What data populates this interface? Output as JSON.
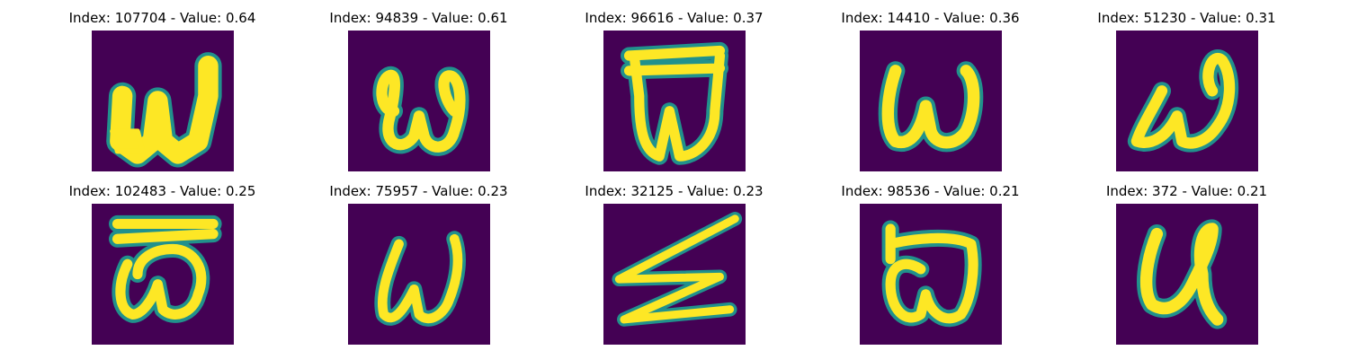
{
  "figure": {
    "background": "#ffffff",
    "colormap": {
      "background": "#440154",
      "edge": "#21918c",
      "stroke": "#fde725"
    },
    "panels": [
      {
        "index": "107704",
        "value": "0.64",
        "label": "Index: 107704 - Value: 0.64",
        "glyph": "w-bold"
      },
      {
        "index": "94839",
        "value": "0.61",
        "label": "Index: 94839 - Value: 0.61",
        "glyph": "omega-loop"
      },
      {
        "index": "96616",
        "value": "0.37",
        "label": "Index: 96616 - Value: 0.37",
        "glyph": "boxed-w"
      },
      {
        "index": "14410",
        "value": "0.36",
        "label": "Index: 14410 - Value: 0.36",
        "glyph": "w-upright"
      },
      {
        "index": "51230",
        "value": "0.31",
        "label": "Index: 51230 - Value: 0.31",
        "glyph": "w-slanted"
      },
      {
        "index": "102483",
        "value": "0.25",
        "label": "Index: 102483 - Value: 0.25",
        "glyph": "omega-bar"
      },
      {
        "index": "75957",
        "value": "0.23",
        "label": "Index: 75957 - Value: 0.23",
        "glyph": "w-thin"
      },
      {
        "index": "32125",
        "value": "0.23",
        "label": "Index: 32125 - Value: 0.23",
        "glyph": "zigzag"
      },
      {
        "index": "98536",
        "value": "0.21",
        "label": "Index: 98536 - Value: 0.21",
        "glyph": "omega-flag"
      },
      {
        "index": "372",
        "value": "0.21",
        "label": "Index: 372 - Value: 0.21",
        "glyph": "u-loop"
      }
    ]
  }
}
